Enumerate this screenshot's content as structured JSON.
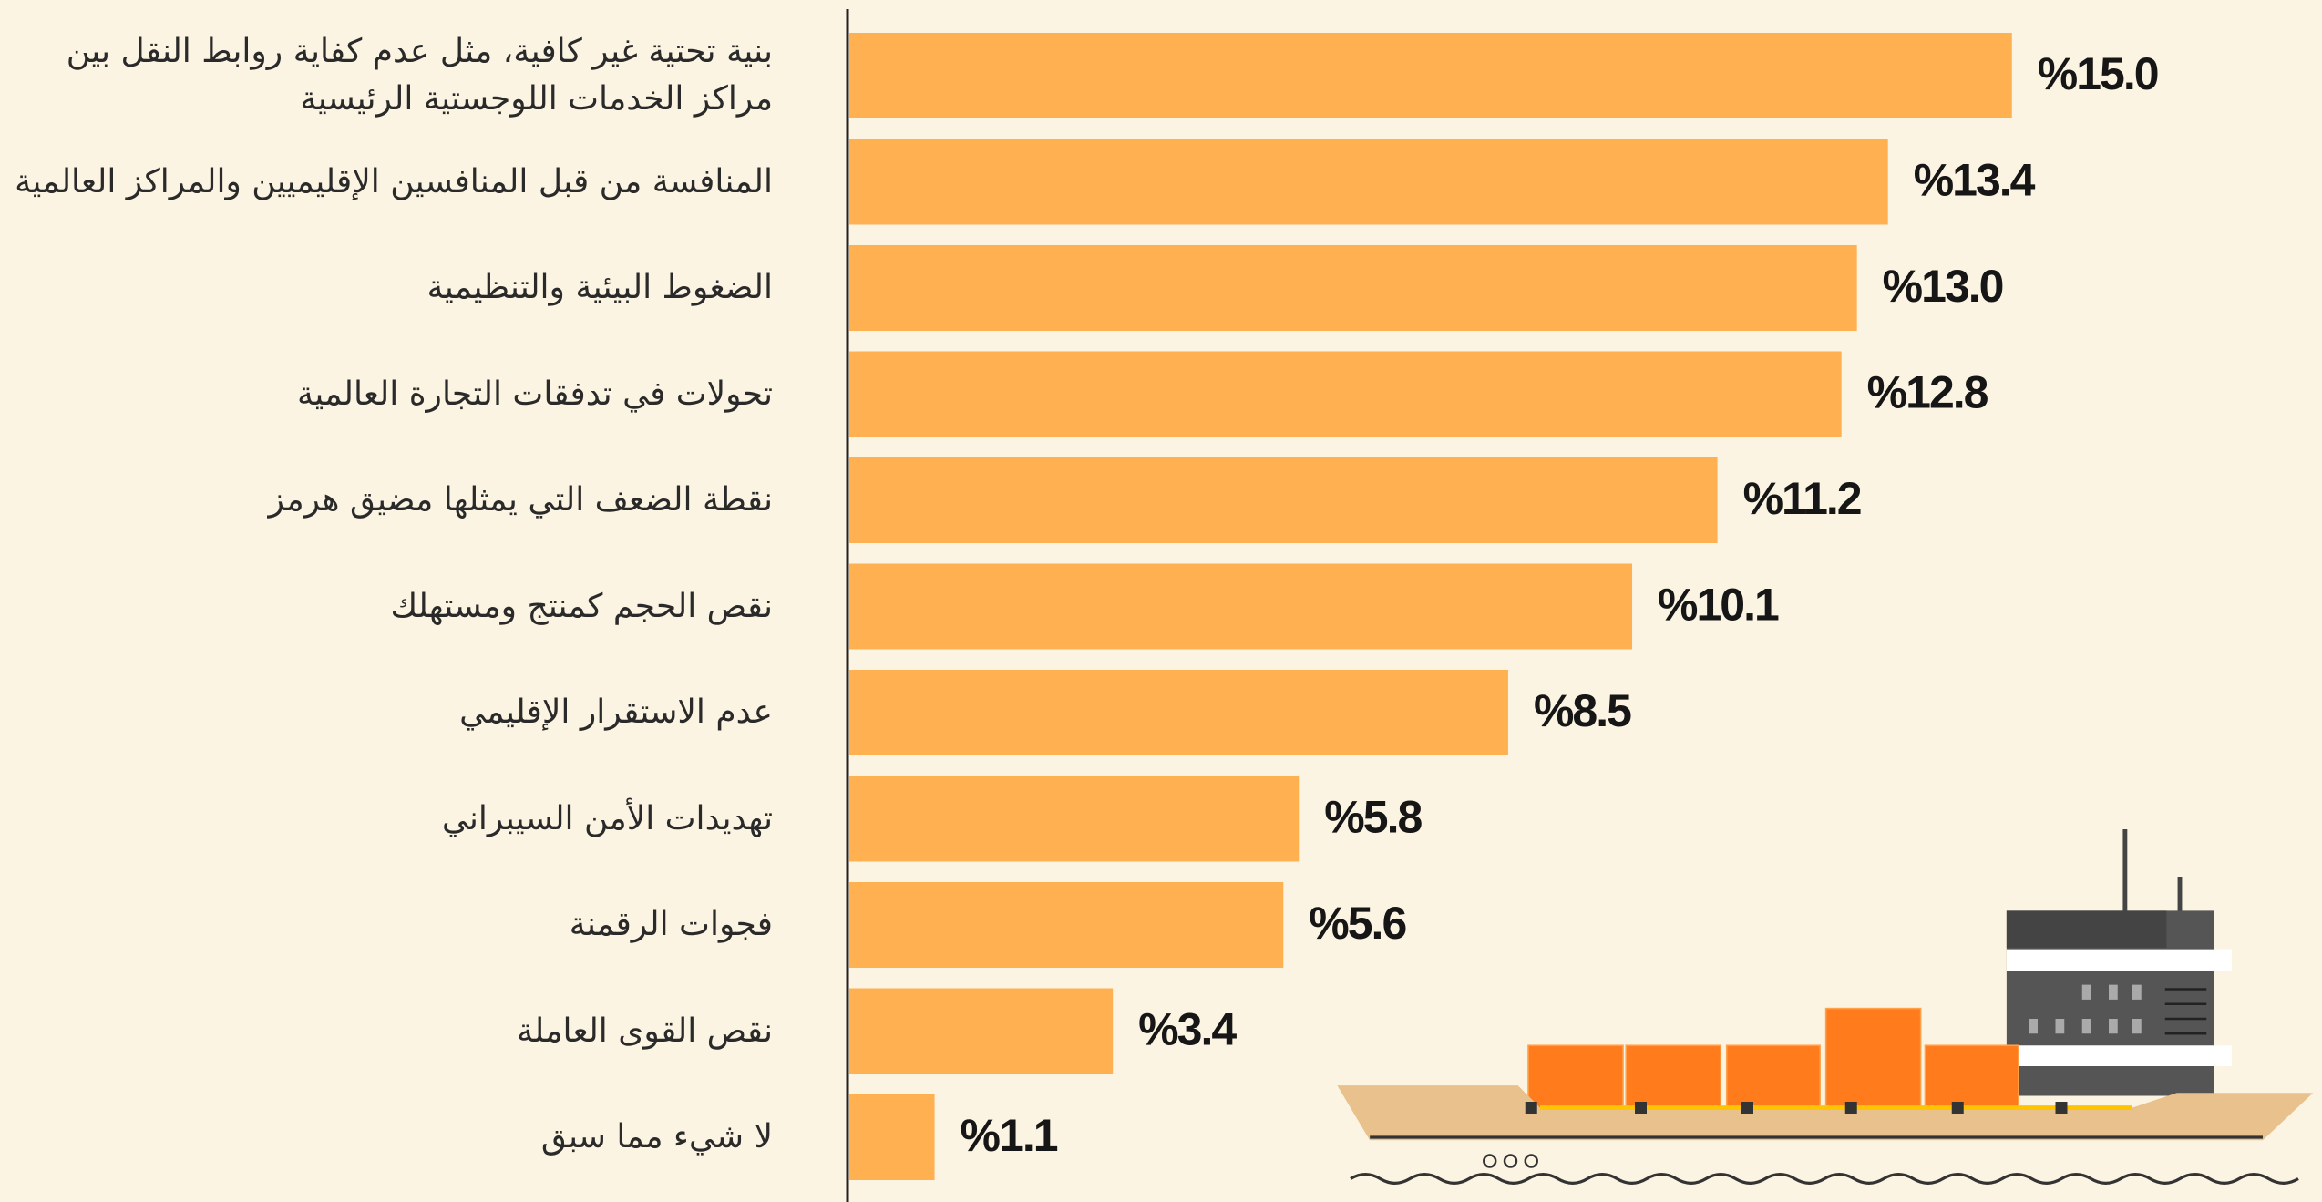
{
  "chart_data": {
    "type": "bar",
    "orientation": "horizontal",
    "categories": [
      "بنية تحتية غير كافية، مثل عدم كفاية روابط النقل بين مراكز الخدمات اللوجستية الرئيسية",
      "المنافسة من قبل المنافسين الإقليميين والمراكز العالمية",
      "الضغوط البيئية والتنظيمية",
      "تحولات في تدفقات التجارة العالمية",
      "نقطة الضعف التي يمثلها مضيق هرمز",
      "نقص الحجم كمنتج ومستهلك",
      "عدم الاستقرار الإقليمي",
      "تهديدات الأمن السيبراني",
      "فجوات الرقمنة",
      "نقص القوى العاملة",
      "لا شيء مما سبق"
    ],
    "values": [
      15.0,
      13.4,
      13.0,
      12.8,
      11.2,
      10.1,
      8.5,
      5.8,
      5.6,
      3.4,
      1.1
    ],
    "value_labels": [
      "%15.0",
      "%13.4",
      "%13.0",
      "%12.8",
      "%11.2",
      "%10.1",
      "%8.5",
      "%5.8",
      "%5.6",
      "%3.4",
      "%1.1"
    ],
    "color": "#ffb152",
    "xlim": [
      0,
      19
    ]
  }
}
